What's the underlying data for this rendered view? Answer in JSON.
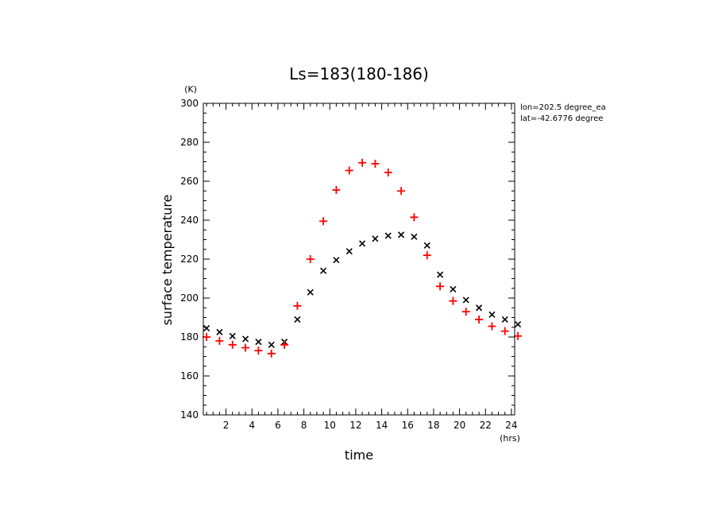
{
  "chart_data": {
    "type": "scatter",
    "title": "Ls=183(180-186)",
    "xlabel": "time",
    "ylabel": "surface temperature",
    "x_unit": "(hrs)",
    "y_unit": "(K)",
    "xlim": [
      0.25,
      24.25
    ],
    "ylim": [
      140,
      300
    ],
    "xticks": [
      2,
      4,
      6,
      8,
      10,
      12,
      14,
      16,
      18,
      20,
      22,
      24
    ],
    "yticks": [
      140,
      160,
      180,
      200,
      220,
      240,
      260,
      280,
      300
    ],
    "x_minor_step": 0.5,
    "y_minor_step": 5,
    "grid": false,
    "annotations": [
      "lon=202.5 degree_ea",
      "lat=-42.6776 degree"
    ],
    "series": [
      {
        "marker": "x",
        "color": "#000000",
        "x": [
          0.5,
          1.5,
          2.5,
          3.5,
          4.5,
          5.5,
          6.5,
          7.5,
          8.5,
          9.5,
          10.5,
          11.5,
          12.5,
          13.5,
          14.5,
          15.5,
          16.5,
          17.5,
          18.5,
          19.5,
          20.5,
          21.5,
          22.5,
          23.5,
          24.5
        ],
        "y": [
          184.5,
          182.5,
          180.5,
          179,
          177.5,
          176,
          177.5,
          189,
          203,
          214,
          219.5,
          224,
          228,
          230.5,
          232,
          232.5,
          231.5,
          227,
          212,
          204.5,
          199,
          195,
          191.5,
          189,
          186.5
        ]
      },
      {
        "marker": "+",
        "color": "#ff0000",
        "x": [
          0.5,
          1.5,
          2.5,
          3.5,
          4.5,
          5.5,
          6.5,
          7.5,
          8.5,
          9.5,
          10.5,
          11.5,
          12.5,
          13.5,
          14.5,
          15.5,
          16.5,
          17.5,
          18.5,
          19.5,
          20.5,
          21.5,
          22.5,
          23.5,
          24.5
        ],
        "y": [
          180,
          178,
          176,
          174.5,
          173,
          171.5,
          176,
          196,
          220,
          239.5,
          255.5,
          265.5,
          269.5,
          269,
          264.5,
          255,
          241.5,
          222,
          206,
          198.5,
          193,
          189,
          185.5,
          183,
          180.5
        ]
      }
    ]
  }
}
